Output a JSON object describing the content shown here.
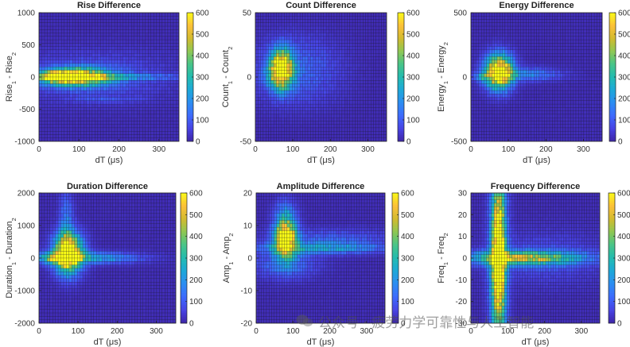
{
  "colormap": [
    "#3e26a8",
    "#4743e4",
    "#3d6afd",
    "#2c8df2",
    "#1da8d9",
    "#22bbb0",
    "#48c488",
    "#8ec752",
    "#d3bb2f",
    "#fcc139",
    "#f9fb15"
  ],
  "watermark": "公众号 · 疲劳力学可靠性与人工智能",
  "chart_data": [
    {
      "type": "heatmap",
      "title": "Rise Difference",
      "xlabel": "dT (μs)",
      "ylabel": "Rise_1 - Rise_2",
      "xlim": [
        0,
        350
      ],
      "ylim": [
        -1000,
        1000
      ],
      "xticks": [
        0,
        100,
        200,
        300
      ],
      "yticks": [
        -1000,
        -500,
        0,
        500,
        1000
      ],
      "colorbar": {
        "min": 0,
        "max": 600,
        "ticks": [
          0,
          100,
          200,
          300,
          400,
          500,
          600
        ]
      },
      "grid": {
        "cols": 50,
        "rows": 38
      },
      "background": 15,
      "blobs": [
        {
          "x": 90,
          "y": 0,
          "sx": 55,
          "sy": 90,
          "amp": 650
        },
        {
          "x": 40,
          "y": 0,
          "sx": 25,
          "sy": 50,
          "amp": 320
        },
        {
          "x": 200,
          "y": 0,
          "sx": 110,
          "sy": 35,
          "amp": 140
        },
        {
          "x": 140,
          "y": 0,
          "sx": 120,
          "sy": 250,
          "amp": 90
        },
        {
          "x": 170,
          "y": -350,
          "sx": 60,
          "sy": 30,
          "amp": 50
        }
      ]
    },
    {
      "type": "heatmap",
      "title": "Count Difference",
      "xlabel": "dT (μs)",
      "ylabel": "Count_1 - Count_2",
      "xlim": [
        0,
        350
      ],
      "ylim": [
        -50,
        50
      ],
      "xticks": [
        0,
        100,
        200,
        300
      ],
      "yticks": [
        -50,
        0,
        50
      ],
      "colorbar": {
        "min": 0,
        "max": 600,
        "ticks": [
          0,
          100,
          200,
          300,
          400,
          500,
          600
        ]
      },
      "grid": {
        "cols": 50,
        "rows": 38
      },
      "background": 12,
      "blobs": [
        {
          "x": 70,
          "y": 6,
          "sx": 20,
          "sy": 10,
          "amp": 720
        },
        {
          "x": 110,
          "y": 5,
          "sx": 80,
          "sy": 18,
          "amp": 110
        },
        {
          "x": 40,
          "y": 0,
          "sx": 15,
          "sy": 6,
          "amp": 80
        }
      ]
    },
    {
      "type": "heatmap",
      "title": "Energy Difference",
      "xlabel": "dT (μs)",
      "ylabel": "Energy_1 - Energy_2",
      "xlim": [
        0,
        350
      ],
      "ylim": [
        -500,
        500
      ],
      "xticks": [
        0,
        100,
        200,
        300
      ],
      "yticks": [
        -500,
        0,
        500
      ],
      "colorbar": {
        "min": 0,
        "max": 600,
        "ticks": [
          0,
          100,
          200,
          300,
          400,
          500,
          600
        ]
      },
      "grid": {
        "cols": 50,
        "rows": 38
      },
      "background": 15,
      "blobs": [
        {
          "x": 75,
          "y": 40,
          "sx": 25,
          "sy": 90,
          "amp": 720
        },
        {
          "x": 150,
          "y": 20,
          "sx": 60,
          "sy": 35,
          "amp": 160
        },
        {
          "x": 30,
          "y": 0,
          "sx": 15,
          "sy": 25,
          "amp": 150
        }
      ]
    },
    {
      "type": "heatmap",
      "title": "Duration Difference",
      "xlabel": "dT (μs)",
      "ylabel": "Duration_1 - Duration_2",
      "xlim": [
        0,
        350
      ],
      "ylim": [
        -2000,
        2000
      ],
      "xticks": [
        0,
        100,
        200,
        300
      ],
      "yticks": [
        -2000,
        -1000,
        0,
        1000,
        2000
      ],
      "colorbar": {
        "min": 0,
        "max": 600,
        "ticks": [
          0,
          100,
          200,
          300,
          400,
          500,
          600
        ]
      },
      "grid": {
        "cols": 50,
        "rows": 38
      },
      "background": 15,
      "blobs": [
        {
          "x": 75,
          "y": 150,
          "sx": 25,
          "sy": 400,
          "amp": 720
        },
        {
          "x": 70,
          "y": 900,
          "sx": 12,
          "sy": 800,
          "amp": 150
        },
        {
          "x": 120,
          "y": 0,
          "sx": 90,
          "sy": 120,
          "amp": 240
        },
        {
          "x": 30,
          "y": 0,
          "sx": 20,
          "sy": 120,
          "amp": 200
        }
      ]
    },
    {
      "type": "heatmap",
      "title": "Amplitude Difference",
      "xlabel": "dT (μs)",
      "ylabel": "Amp_1 - Amp_2",
      "xlim": [
        0,
        350
      ],
      "ylim": [
        -20,
        20
      ],
      "xticks": [
        0,
        100,
        200,
        300
      ],
      "yticks": [
        -20,
        -10,
        0,
        10,
        20
      ],
      "colorbar": {
        "min": 0,
        "max": 600,
        "ticks": [
          0,
          100,
          200,
          300,
          400,
          500,
          600
        ]
      },
      "grid": {
        "cols": 50,
        "rows": 38
      },
      "background": 15,
      "blobs": [
        {
          "x": 80,
          "y": 6,
          "sx": 20,
          "sy": 4,
          "amp": 720
        },
        {
          "x": 180,
          "y": 3,
          "sx": 120,
          "sy": 1.2,
          "amp": 200
        },
        {
          "x": 200,
          "y": 6,
          "sx": 120,
          "sy": 2,
          "amp": 90
        },
        {
          "x": 80,
          "y": -2,
          "sx": 60,
          "sy": 3,
          "amp": 120
        },
        {
          "x": 80,
          "y": 14,
          "sx": 20,
          "sy": 3,
          "amp": 120
        }
      ]
    },
    {
      "type": "heatmap",
      "title": "Frequency Difference",
      "xlabel": "dT (μs)",
      "ylabel": "Freq_1 - Freq_2",
      "xlim": [
        0,
        350
      ],
      "ylim": [
        -30,
        30
      ],
      "xticks": [
        0,
        100,
        200,
        300
      ],
      "yticks": [
        -30,
        -20,
        -10,
        0,
        10,
        20,
        30
      ],
      "colorbar": {
        "min": 0,
        "max": 600,
        "ticks": [
          0,
          100,
          200,
          300,
          400,
          500,
          600
        ]
      },
      "grid": {
        "cols": 50,
        "rows": 38
      },
      "background": 15,
      "blobs": [
        {
          "x": 75,
          "y": 0,
          "sx": 12,
          "sy": 22,
          "amp": 620
        },
        {
          "x": 75,
          "y": 0,
          "sx": 18,
          "sy": 40,
          "amp": 180
        },
        {
          "x": 140,
          "y": 0,
          "sx": 110,
          "sy": 2.2,
          "amp": 420
        },
        {
          "x": 200,
          "y": 0,
          "sx": 110,
          "sy": 8,
          "amp": 70
        }
      ]
    }
  ]
}
